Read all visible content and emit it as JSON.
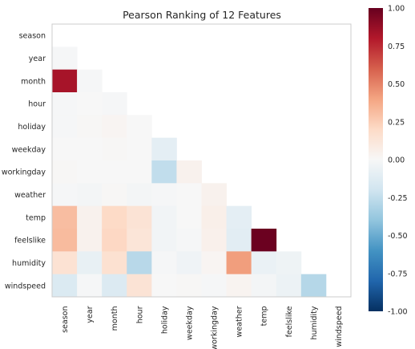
{
  "chart_data": {
    "type": "heatmap",
    "title": "Pearson Ranking of 12 Features",
    "features": [
      "season",
      "year",
      "month",
      "hour",
      "holiday",
      "weekday",
      "workingday",
      "weather",
      "temp",
      "feelslike",
      "humidity",
      "windspeed"
    ],
    "colormap": "RdBu_r",
    "vmin": -1.0,
    "vmax": 1.0,
    "colorbar_ticks": [
      "1.00",
      "0.75",
      "0.50",
      "0.25",
      "0.00",
      "-0.25",
      "-0.50",
      "-0.75",
      "-1.00"
    ],
    "colorbar_tick_values": [
      1.0,
      0.75,
      0.5,
      0.25,
      0.0,
      -0.25,
      -0.5,
      -0.75,
      -1.0
    ],
    "matrix_lower": [
      [],
      [
        -0.01
      ],
      [
        0.83,
        -0.01
      ],
      [
        -0.01,
        -0.0,
        -0.01
      ],
      [
        -0.01,
        0.01,
        0.02,
        0.0
      ],
      [
        -0.0,
        -0.0,
        0.01,
        0.0,
        -0.1
      ],
      [
        0.01,
        -0.0,
        -0.0,
        0.0,
        -0.25,
        0.04
      ],
      [
        -0.01,
        -0.02,
        0.01,
        -0.02,
        -0.01,
        0.0,
        0.04
      ],
      [
        0.31,
        0.04,
        0.2,
        0.14,
        -0.03,
        -0.0,
        0.06,
        -0.1
      ],
      [
        0.32,
        0.04,
        0.21,
        0.13,
        -0.03,
        -0.01,
        0.05,
        -0.11,
        0.99
      ],
      [
        0.15,
        -0.08,
        0.16,
        -0.28,
        -0.01,
        -0.04,
        0.02,
        0.42,
        -0.07,
        -0.05
      ],
      [
        -0.15,
        -0.01,
        -0.14,
        0.14,
        0.0,
        0.01,
        -0.01,
        0.03,
        -0.02,
        -0.06,
        -0.29
      ]
    ]
  }
}
